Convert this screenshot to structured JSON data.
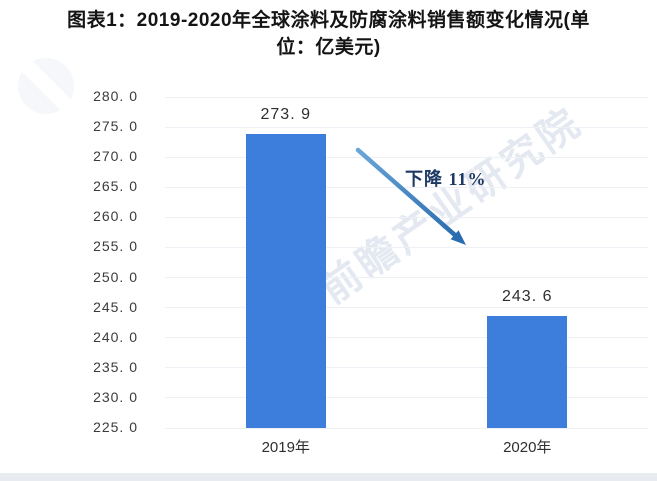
{
  "title": {
    "line1": "图表1：2019-2020年全球涂料及防腐涂料销售额变化情况(单",
    "line2": "位：亿美元)",
    "full": "图表1：2019-2020年全球涂料及防腐涂料销售额变化情况(单位：亿美元)"
  },
  "watermark": {
    "text": "前瞻产业研究院",
    "logo": "qianzhan-circle-logo"
  },
  "annotation": {
    "text": "下降 11%"
  },
  "chart": {
    "y_ticks": [
      {
        "value": 280,
        "label": "280. 0"
      },
      {
        "value": 275,
        "label": "275. 0"
      },
      {
        "value": 270,
        "label": "270. 0"
      },
      {
        "value": 265,
        "label": "265. 0"
      },
      {
        "value": 260,
        "label": "260. 0"
      },
      {
        "value": 255,
        "label": "255. 0"
      },
      {
        "value": 250,
        "label": "250. 0"
      },
      {
        "value": 245,
        "label": "245. 0"
      },
      {
        "value": 240,
        "label": "240. 0"
      },
      {
        "value": 235,
        "label": "235. 0"
      },
      {
        "value": 230,
        "label": "230. 0"
      },
      {
        "value": 225,
        "label": "225. 0"
      }
    ],
    "bars": [
      {
        "category": "2019年",
        "value": 273.9,
        "value_label": "273. 9"
      },
      {
        "category": "2020年",
        "value": 243.6,
        "value_label": "243. 6"
      }
    ]
  },
  "chart_data": {
    "type": "bar",
    "title": "图表1：2019-2020年全球涂料及防腐涂料销售额变化情况(单位：亿美元)",
    "categories": [
      "2019年",
      "2020年"
    ],
    "values": [
      273.9,
      243.6
    ],
    "unit": "亿美元",
    "xlabel": "",
    "ylabel": "",
    "ylim": [
      225,
      280
    ],
    "ytick_step": 5,
    "grid": true,
    "legend": false,
    "annotations": [
      {
        "text": "下降 11%",
        "type": "decline-arrow"
      }
    ]
  },
  "colors": {
    "bar": "#3d7edd",
    "grid": "#edf1f5",
    "tick": "#3b3b3b",
    "title": "#141414",
    "annotation": "#1e3a63",
    "arrow_start": "#6aa6d8",
    "arrow_end": "#2a6cb0",
    "watermark": "rgba(168,182,210,0.32)",
    "strip": "#e8ebef"
  }
}
